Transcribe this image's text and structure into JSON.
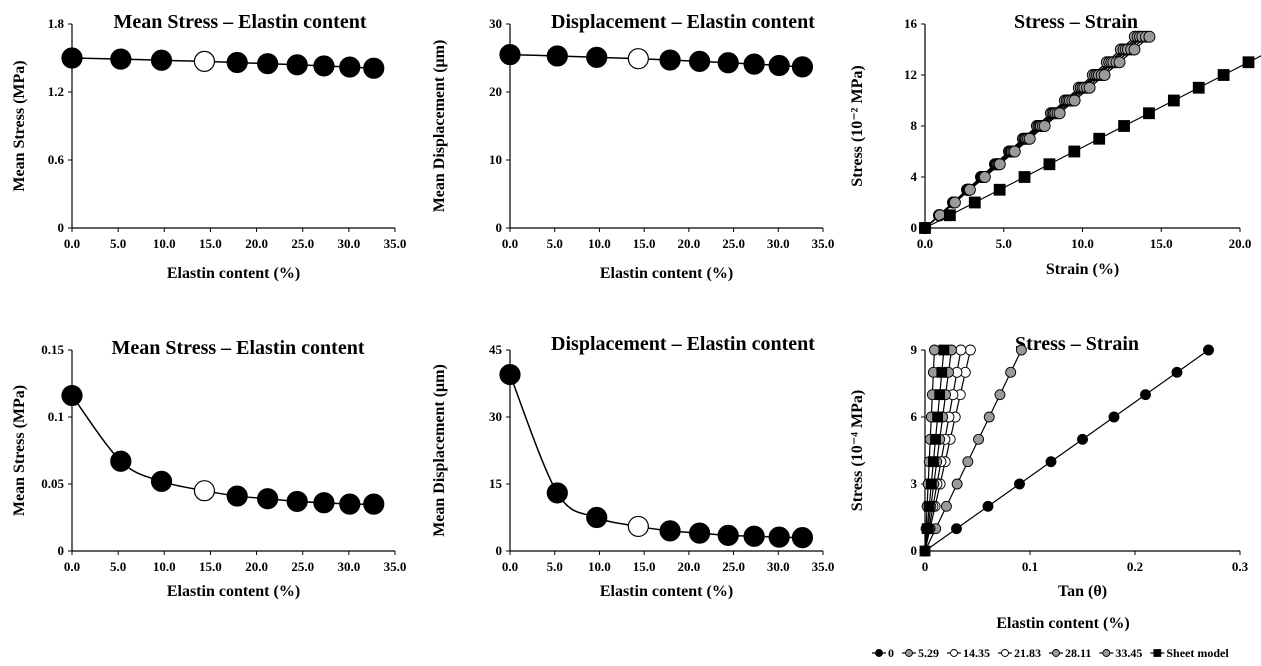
{
  "figure_caption": "Elastin content (%)",
  "chart_data": [
    {
      "id": "p1",
      "type": "line",
      "title": "Mean Stress – Elastin content",
      "xlabel": "Elastin content (%)",
      "ylabel": "Mean Stress (MPa)",
      "xlim": [
        0,
        35
      ],
      "ylim": [
        0,
        1.8
      ],
      "xticks": [
        "0.0",
        "5.0",
        "10.0",
        "15.0",
        "20.0",
        "25.0",
        "30.0",
        "35.0"
      ],
      "yticks": [
        "0",
        "0.6",
        "1.2",
        "1.8"
      ],
      "x": [
        0,
        5.29,
        9.7,
        14.35,
        17.9,
        21.2,
        24.4,
        27.3,
        30.1,
        32.7
      ],
      "values": [
        1.5,
        1.49,
        1.48,
        1.47,
        1.46,
        1.45,
        1.44,
        1.43,
        1.42,
        1.41
      ],
      "highlight_index": 3,
      "grid": false
    },
    {
      "id": "p2",
      "type": "line",
      "title": "Displacement – Elastin content",
      "xlabel": "Elastin content (%)",
      "ylabel": "Mean Displacement (μm)",
      "xlim": [
        0,
        35
      ],
      "ylim": [
        0,
        30
      ],
      "xticks": [
        "0.0",
        "5.0",
        "10.0",
        "15.0",
        "20.0",
        "25.0",
        "30.0",
        "35.0"
      ],
      "yticks": [
        "0",
        "10",
        "20",
        "30"
      ],
      "x": [
        0,
        5.29,
        9.7,
        14.35,
        17.9,
        21.2,
        24.4,
        27.3,
        30.1,
        32.7
      ],
      "values": [
        25.5,
        25.3,
        25.1,
        24.9,
        24.7,
        24.5,
        24.3,
        24.1,
        23.9,
        23.7
      ],
      "highlight_index": 3,
      "grid": false
    },
    {
      "id": "p3",
      "type": "scatter",
      "title": "Stress – Strain",
      "xlabel": "Strain (%)",
      "ylabel": "Stress (10⁻² MPa)",
      "xlim": [
        0,
        20
      ],
      "ylim": [
        0,
        16
      ],
      "xticks": [
        "0.0",
        "5.0",
        "10.0",
        "15.0",
        "20.0"
      ],
      "yticks": [
        "0",
        "4",
        "8",
        "12",
        "16"
      ],
      "series": [
        {
          "style": "gray-circle",
          "slope": 0.888
        },
        {
          "style": "gray-circle",
          "slope": 0.9
        },
        {
          "style": "gray-circle",
          "slope": 0.91
        },
        {
          "style": "gray-circle",
          "slope": 0.92
        },
        {
          "style": "gray-circle",
          "slope": 0.935
        },
        {
          "style": "gray-circle",
          "slope": 0.95
        },
        {
          "style": "black-square",
          "slope": 1.58
        }
      ],
      "y_points": [
        0,
        1,
        2,
        3,
        4,
        5,
        6,
        7,
        8,
        9,
        10,
        11,
        12,
        13,
        14,
        15
      ],
      "grid": false
    },
    {
      "id": "p4",
      "type": "line",
      "title": "Mean Stress – Elastin content",
      "xlabel": "Elastin content (%)",
      "ylabel": "Mean Stress (MPa)",
      "xlim": [
        0,
        35
      ],
      "ylim": [
        0,
        0.15
      ],
      "xticks": [
        "0.0",
        "5.0",
        "10.0",
        "15.0",
        "20.0",
        "25.0",
        "30.0",
        "35.0"
      ],
      "yticks": [
        "0",
        "0.05",
        "0.1",
        "0.15"
      ],
      "x": [
        0,
        5.29,
        9.7,
        14.35,
        17.9,
        21.2,
        24.4,
        27.3,
        30.1,
        32.7
      ],
      "values": [
        0.116,
        0.067,
        0.052,
        0.045,
        0.041,
        0.039,
        0.037,
        0.036,
        0.035,
        0.035
      ],
      "highlight_index": 3,
      "grid": false
    },
    {
      "id": "p5",
      "type": "line",
      "title": "Displacement – Elastin content",
      "xlabel": "Elastin content (%)",
      "ylabel": "Mean Displacement (μm)",
      "xlim": [
        0,
        35
      ],
      "ylim": [
        0,
        45
      ],
      "xticks": [
        "0.0",
        "5.0",
        "10.0",
        "15.0",
        "20.0",
        "25.0",
        "30.0",
        "35.0"
      ],
      "yticks": [
        "0",
        "15",
        "30",
        "45"
      ],
      "x": [
        0,
        5.29,
        9.7,
        14.35,
        17.9,
        21.2,
        24.4,
        27.3,
        30.1,
        32.7
      ],
      "values": [
        39.5,
        13.0,
        7.5,
        5.5,
        4.5,
        4.0,
        3.5,
        3.3,
        3.1,
        3.0
      ],
      "highlight_index": 3,
      "grid": false
    },
    {
      "id": "p6",
      "type": "line",
      "title": "Stress – Strain",
      "xlabel": "Tan (θ)",
      "ylabel": "Stress (10⁻⁴ MPa)",
      "xlim": [
        0,
        0.3
      ],
      "ylim": [
        0,
        9
      ],
      "xticks": [
        "0",
        "0.1",
        "0.2",
        "0.3"
      ],
      "yticks": [
        "0",
        "3",
        "6",
        "9"
      ],
      "y_points": [
        0,
        1,
        2,
        3,
        4,
        5,
        6,
        7,
        8,
        9
      ],
      "series": [
        {
          "name": "0",
          "style": "black-circle",
          "slope": 0.03
        },
        {
          "name": "5.29",
          "style": "gray-circle",
          "slope": 0.0102
        },
        {
          "name": "14.35",
          "style": "white-circle",
          "slope": 0.0048
        },
        {
          "name": "21.83",
          "style": "white-circle",
          "slope": 0.0038
        },
        {
          "name": "28.11",
          "style": "gray-circle",
          "slope": 0.0028
        },
        {
          "name": "33.45",
          "style": "gray-circle",
          "slope": 0.001
        },
        {
          "name": "Sheet model",
          "style": "black-square",
          "slope": 0.002
        }
      ],
      "legend_position": "bottom-right",
      "grid": false
    }
  ]
}
